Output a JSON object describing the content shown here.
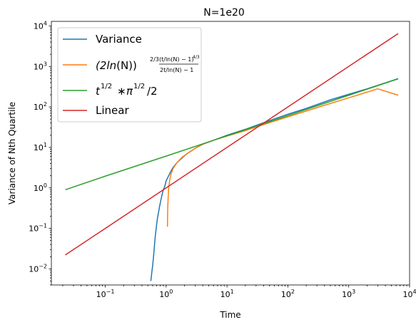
{
  "chart_data": {
    "type": "line",
    "title": "N=1e20",
    "xlabel": "Time",
    "ylabel": "Variance of Nth Quartile",
    "xscale": "log",
    "yscale": "log",
    "xlim": [
      0.013,
      10000
    ],
    "ylim": [
      0.004,
      13000
    ],
    "grid": false,
    "legend_position": "top-left",
    "x_ticks": [
      {
        "value": 0.1,
        "base": "10",
        "exp": "−1"
      },
      {
        "value": 1,
        "base": "10",
        "exp": "0"
      },
      {
        "value": 10,
        "base": "10",
        "exp": "1"
      },
      {
        "value": 100,
        "base": "10",
        "exp": "2"
      },
      {
        "value": 1000,
        "base": "10",
        "exp": "3"
      },
      {
        "value": 10000,
        "base": "10",
        "exp": "4"
      }
    ],
    "y_ticks": [
      {
        "value": 0.01,
        "base": "10",
        "exp": "−2"
      },
      {
        "value": 0.1,
        "base": "10",
        "exp": "−1"
      },
      {
        "value": 1,
        "base": "10",
        "exp": "0"
      },
      {
        "value": 10,
        "base": "10",
        "exp": "1"
      },
      {
        "value": 100,
        "base": "10",
        "exp": "2"
      },
      {
        "value": 1000,
        "base": "10",
        "exp": "3"
      },
      {
        "value": 10000,
        "base": "10",
        "exp": "4"
      }
    ],
    "series": [
      {
        "name": "Variance",
        "color": "#1f77b4",
        "x": [
          0.56,
          0.58,
          0.6,
          0.62,
          0.64,
          0.66,
          0.68,
          0.7,
          0.72,
          0.75,
          0.78,
          0.82,
          0.86,
          0.9,
          0.95,
          1.0,
          1.1,
          1.2,
          1.3,
          1.5,
          1.8,
          2.2,
          3,
          4,
          6,
          10,
          20,
          30,
          50,
          100,
          200,
          500,
          1000,
          2000,
          5000,
          6500
        ],
        "y": [
          0.005,
          0.008,
          0.012,
          0.02,
          0.035,
          0.06,
          0.09,
          0.13,
          0.18,
          0.25,
          0.35,
          0.5,
          0.7,
          0.9,
          1.1,
          1.5,
          2.0,
          2.6,
          3.2,
          4.2,
          5.4,
          7.0,
          9.5,
          12,
          15,
          20,
          28,
          35,
          46,
          66,
          92,
          150,
          205,
          280,
          440,
          500
        ]
      },
      {
        "name": "(2ln(N))^{2/3} (t/ln(N)−1)^{4/3} / (2t/ln(N)−1)",
        "color": "#ff7f0e",
        "x": [
          1.05,
          1.06,
          1.08,
          1.1,
          1.15,
          1.2,
          1.3,
          1.5,
          1.8,
          2.2,
          3,
          4,
          6,
          10,
          20,
          50,
          100,
          300,
          1000,
          3000,
          6500
        ],
        "y": [
          0.11,
          0.3,
          0.6,
          1.0,
          1.6,
          2.2,
          3.0,
          4.2,
          5.6,
          7.0,
          9.5,
          12,
          15,
          19,
          26,
          41,
          57,
          96,
          168,
          280,
          195
        ]
      },
      {
        "name": "t^{1/2}·π^{1/2}/2",
        "color": "#2ca02c",
        "x": [
          0.022,
          0.1,
          1,
          10,
          100,
          1000,
          6500
        ],
        "y": [
          0.9,
          1.95,
          6.1,
          19.4,
          61,
          194,
          495
        ]
      },
      {
        "name": "Linear",
        "color": "#d62728",
        "x": [
          0.022,
          0.1,
          1,
          10,
          100,
          1000,
          6500
        ],
        "y": [
          0.022,
          0.1,
          1,
          10,
          100,
          1000,
          6500
        ]
      }
    ]
  },
  "legend": {
    "items": [
      {
        "key": "variance",
        "label": "Variance"
      },
      {
        "key": "formula",
        "label_parts": {
          "base": "(2",
          "ln": "ln",
          "mid": "(N))",
          "sup": "2/3",
          "num": "(t/ln(N) − 1)",
          "num_sup": "4/3",
          "den": "2t/ln(N) − 1"
        }
      },
      {
        "key": "sqrt",
        "label_parts": {
          "t": "t",
          "t_sup": "1/2",
          "mul": "∗",
          "pi": "π",
          "pi_sup": "1/2",
          "div": "/2"
        }
      },
      {
        "key": "linear",
        "label": "Linear"
      }
    ]
  }
}
